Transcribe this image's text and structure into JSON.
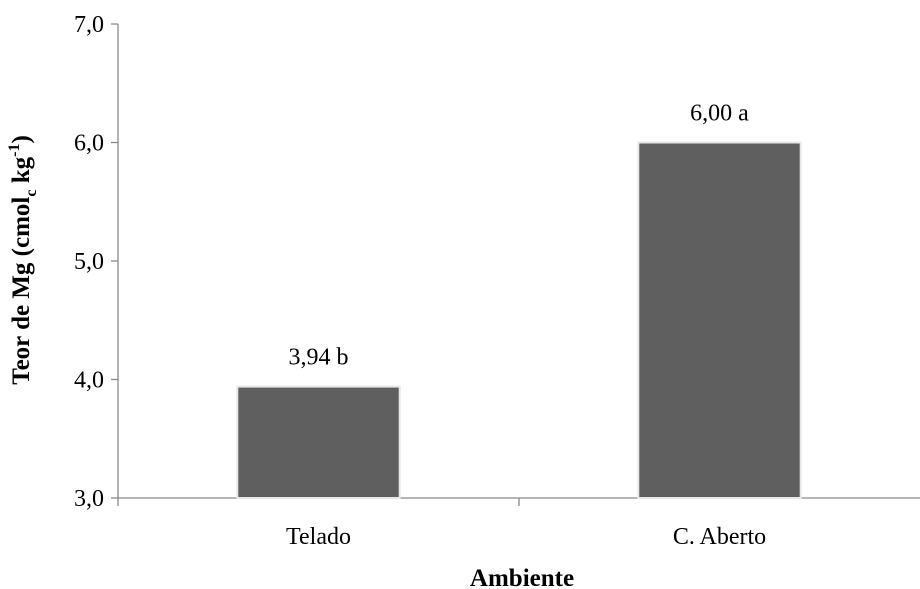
{
  "chart_data": {
    "type": "bar",
    "categories": [
      "Telado",
      "C. Aberto"
    ],
    "values": [
      3.94,
      6.0
    ],
    "data_labels": [
      "3,94 b",
      "6,00 a"
    ],
    "title": "",
    "xlabel": "Ambiente",
    "ylabel": {
      "main": "Teor de Mg (cmol",
      "subscript": "c",
      "middle": " kg",
      "superscript": "-1",
      "end": ")"
    },
    "ylim": [
      3.0,
      7.0
    ],
    "y_ticks": [
      "3,0",
      "4,0",
      "5,0",
      "6,0",
      "7,0"
    ],
    "y_tick_values": [
      3.0,
      4.0,
      5.0,
      6.0,
      7.0
    ],
    "grid": false,
    "legend": "none",
    "colors": {
      "bar": "#5f5f5f",
      "bar_edge": "#e8e8e8",
      "axis": "#8a8a8a"
    }
  }
}
